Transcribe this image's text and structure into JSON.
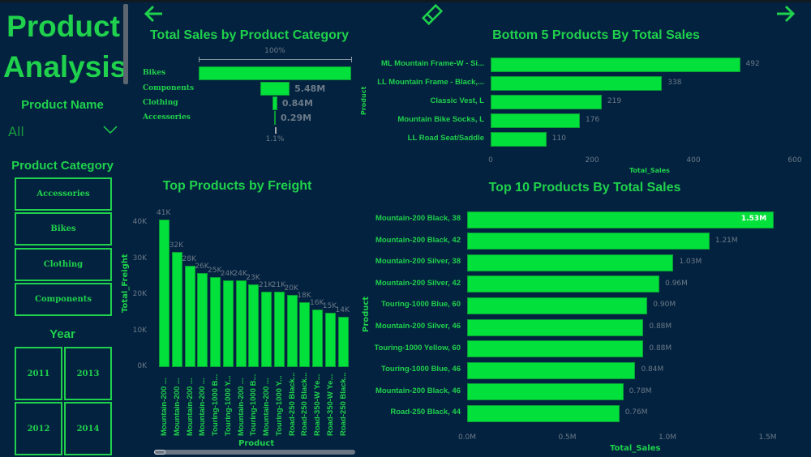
{
  "page": {
    "title": "Product Analysis",
    "colors": {
      "background": "#03223f",
      "accent": "#1fd14c",
      "bar": "#02e03b"
    }
  },
  "nav": {
    "back_icon": "arrow-left-icon",
    "eraser_icon": "eraser-icon",
    "forward_icon": "arrow-right-icon"
  },
  "slicers": {
    "product_name": {
      "label": "Product Name",
      "value": "All"
    },
    "product_category": {
      "label": "Product Category",
      "items": [
        "Accessories",
        "Bikes",
        "Clothing",
        "Components"
      ]
    },
    "year": {
      "label": "Year",
      "items": [
        "2011",
        "2013",
        "2012",
        "2014"
      ]
    }
  },
  "chart_data": [
    {
      "type": "funnel",
      "title": "Total Sales by Product Category",
      "categories": [
        "Bikes",
        "Components",
        "Clothing",
        "Accessories"
      ],
      "values": [
        null,
        5.48,
        0.84,
        0.29
      ],
      "value_labels": [
        "",
        "5.48M",
        "0.84M",
        "0.29M"
      ],
      "relative_widths": [
        100,
        19.3,
        3.0,
        1.1
      ],
      "top_label": "100%",
      "bottom_label": "1.1%"
    },
    {
      "type": "bar",
      "title": "Top Products by Freight",
      "xlabel": "Product",
      "ylabel": "Total_Freight",
      "ylim": [
        0,
        40
      ],
      "yticks": [
        "0K",
        "10K",
        "20K",
        "30K",
        "40K"
      ],
      "categories": [
        "Mountain-200 ...",
        "Mountain-200 ...",
        "Mountain-200 ...",
        "Mountain-200 ...",
        "Touring-1000 B...",
        "Touring-1000 Y...",
        "Mountain-200 ...",
        "Touring-1000 B...",
        "Mountain-200 ...",
        "Touring-1000 Y...",
        "Road-250 Black...",
        "Road-250 Black...",
        "Road-350-W Ye...",
        "Road-350-W Ye...",
        "Road-250 Black..."
      ],
      "values": [
        41,
        32,
        28,
        26,
        25,
        24,
        24,
        23,
        21,
        21,
        20,
        18,
        16,
        15,
        14
      ],
      "value_labels": [
        "41K",
        "32K",
        "28K",
        "26K",
        "25K",
        "24K",
        "24K",
        "23K",
        "21K",
        "21K",
        "20K",
        "18K",
        "16K",
        "15K",
        "14K"
      ]
    },
    {
      "type": "bar",
      "orientation": "horizontal",
      "title": "Bottom 5 Products By Total Sales",
      "xlabel": "Total_Sales",
      "ylabel": "Product",
      "xlim": [
        0,
        600
      ],
      "xticks": [
        "0",
        "200",
        "400",
        "600"
      ],
      "categories": [
        "ML Mountain Frame-W - Si...",
        "LL Mountain Frame - Black,...",
        "Classic Vest, L",
        "Mountain Bike Socks, L",
        "LL Road Seat/Saddle"
      ],
      "values": [
        492,
        338,
        219,
        176,
        110
      ],
      "value_labels": [
        "492",
        "338",
        "219",
        "176",
        "110"
      ]
    },
    {
      "type": "bar",
      "orientation": "horizontal",
      "title": "Top 10 Products By Total Sales",
      "xlabel": "Total_Sales",
      "ylabel": "Product",
      "xlim": [
        0,
        1.5
      ],
      "xticks": [
        "0.0M",
        "0.5M",
        "1.0M",
        "1.5M"
      ],
      "categories": [
        "Mountain-200 Black, 38",
        "Mountain-200 Black, 42",
        "Mountain-200 Silver, 38",
        "Mountain-200 Silver, 42",
        "Touring-1000 Blue, 60",
        "Mountain-200 Silver, 46",
        "Touring-1000 Yellow, 60",
        "Touring-1000 Blue, 46",
        "Mountain-200 Black, 46",
        "Road-250 Black, 44"
      ],
      "values": [
        1.53,
        1.21,
        1.03,
        0.96,
        0.9,
        0.88,
        0.88,
        0.84,
        0.78,
        0.76
      ],
      "value_labels": [
        "1.53M",
        "1.21M",
        "1.03M",
        "0.96M",
        "0.90M",
        "0.88M",
        "0.88M",
        "0.84M",
        "0.78M",
        "0.76M"
      ]
    }
  ]
}
